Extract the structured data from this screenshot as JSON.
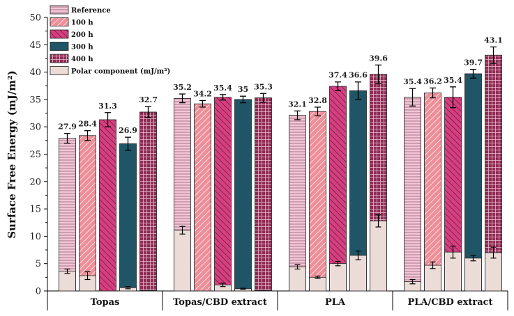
{
  "chart_data": {
    "type": "bar",
    "title": "",
    "xlabel": "",
    "ylabel": "Surface Free Energy (mJ/m²)",
    "ylim": [
      0,
      50
    ],
    "yticks": [
      0,
      5,
      10,
      15,
      20,
      25,
      30,
      35,
      40,
      45,
      50
    ],
    "categories": [
      "Topas",
      "Topas/CBD extract",
      "PLA",
      "PLA/CBD extract"
    ],
    "series": [
      {
        "name": "Reference",
        "key": "ref",
        "color": "#f2c6d6",
        "pattern": "horizontal",
        "values": [
          27.9,
          35.2,
          32.1,
          35.4
        ],
        "labels": [
          "27.9",
          "35.2",
          "32.1",
          "35.4"
        ],
        "errors": [
          0.9,
          0.8,
          0.8,
          1.6
        ],
        "polar": [
          3.6,
          11.1,
          4.4,
          1.7
        ],
        "polar_errors": [
          0.4,
          0.7,
          0.4,
          0.4
        ]
      },
      {
        "name": "100 h",
        "key": "h100",
        "color": "#ee8e98",
        "pattern": "diagonal",
        "values": [
          28.4,
          34.2,
          32.8,
          36.2
        ],
        "labels": [
          "28.4",
          "34.2",
          "32.8",
          "36.2"
        ],
        "errors": [
          0.9,
          0.6,
          0.8,
          0.9
        ],
        "polar": [
          2.8,
          0.0,
          2.5,
          4.7
        ],
        "polar_errors": [
          0.7,
          0.0,
          0.2,
          0.6
        ]
      },
      {
        "name": "200 h",
        "key": "h200",
        "color": "#d63f7f",
        "pattern": "backdiagonal",
        "values": [
          31.3,
          35.4,
          37.4,
          35.4
        ],
        "labels": [
          "31.3",
          "35.4",
          "37.4",
          "35.4"
        ],
        "errors": [
          1.3,
          0.5,
          0.8,
          1.9
        ],
        "polar": [
          0.0,
          1.1,
          5.0,
          7.1
        ],
        "polar_errors": [
          0.0,
          0.3,
          0.4,
          1.1
        ]
      },
      {
        "name": "300 h",
        "key": "h300",
        "color": "#1f5566",
        "pattern": "solid",
        "values": [
          26.9,
          35.0,
          36.6,
          39.7
        ],
        "labels": [
          "26.9",
          "35",
          "36.6",
          "39.7"
        ],
        "errors": [
          1.2,
          0.6,
          1.6,
          0.8
        ],
        "polar": [
          0.6,
          0.4,
          6.5,
          6.0
        ],
        "polar_errors": [
          0.2,
          0.1,
          0.8,
          0.5
        ]
      },
      {
        "name": "400 h",
        "key": "h400",
        "color": "#8e2c55",
        "pattern": "grid",
        "values": [
          32.7,
          35.3,
          39.6,
          43.1
        ],
        "labels": [
          "32.7",
          "35.3",
          "39.6",
          "43.1"
        ],
        "errors": [
          1.0,
          0.8,
          1.7,
          1.5
        ],
        "polar": [
          0.1,
          0.1,
          12.8,
          7.0
        ],
        "polar_errors": [
          0.0,
          0.0,
          1.1,
          1.0
        ]
      }
    ],
    "polar_component": {
      "name": "Polar component (mJ/m²)",
      "color": "#ecdcd7"
    },
    "legend_position": "top-left"
  }
}
